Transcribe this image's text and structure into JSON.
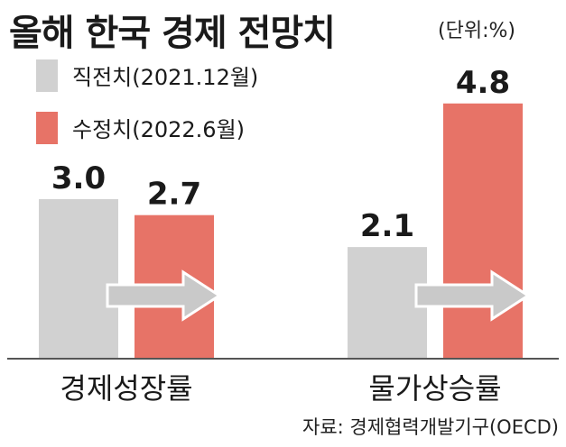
{
  "header": {
    "title": "올해 한국 경제 전망치",
    "unit": "(단위:%)"
  },
  "source": "자료: 경제협력개발기구(OECD)",
  "chart_data": {
    "type": "bar",
    "categories": [
      "경제성장률",
      "물가상승률"
    ],
    "series": [
      {
        "name": "직전치(2021.12월)",
        "values": [
          3.0,
          2.1
        ],
        "value_labels": [
          "3.0",
          "2.1"
        ],
        "color": "#d1d1d1"
      },
      {
        "name": "수정치(2022.6월)",
        "values": [
          2.7,
          4.8
        ],
        "value_labels": [
          "2.7",
          "4.8"
        ],
        "color": "#e77367"
      }
    ],
    "title": "올해 한국 경제 전망치",
    "xlabel": "",
    "ylabel": "",
    "ylim": [
      0,
      5.0
    ],
    "grid": false,
    "legend": "top-left",
    "arrow_color": "#c9c9c9"
  }
}
